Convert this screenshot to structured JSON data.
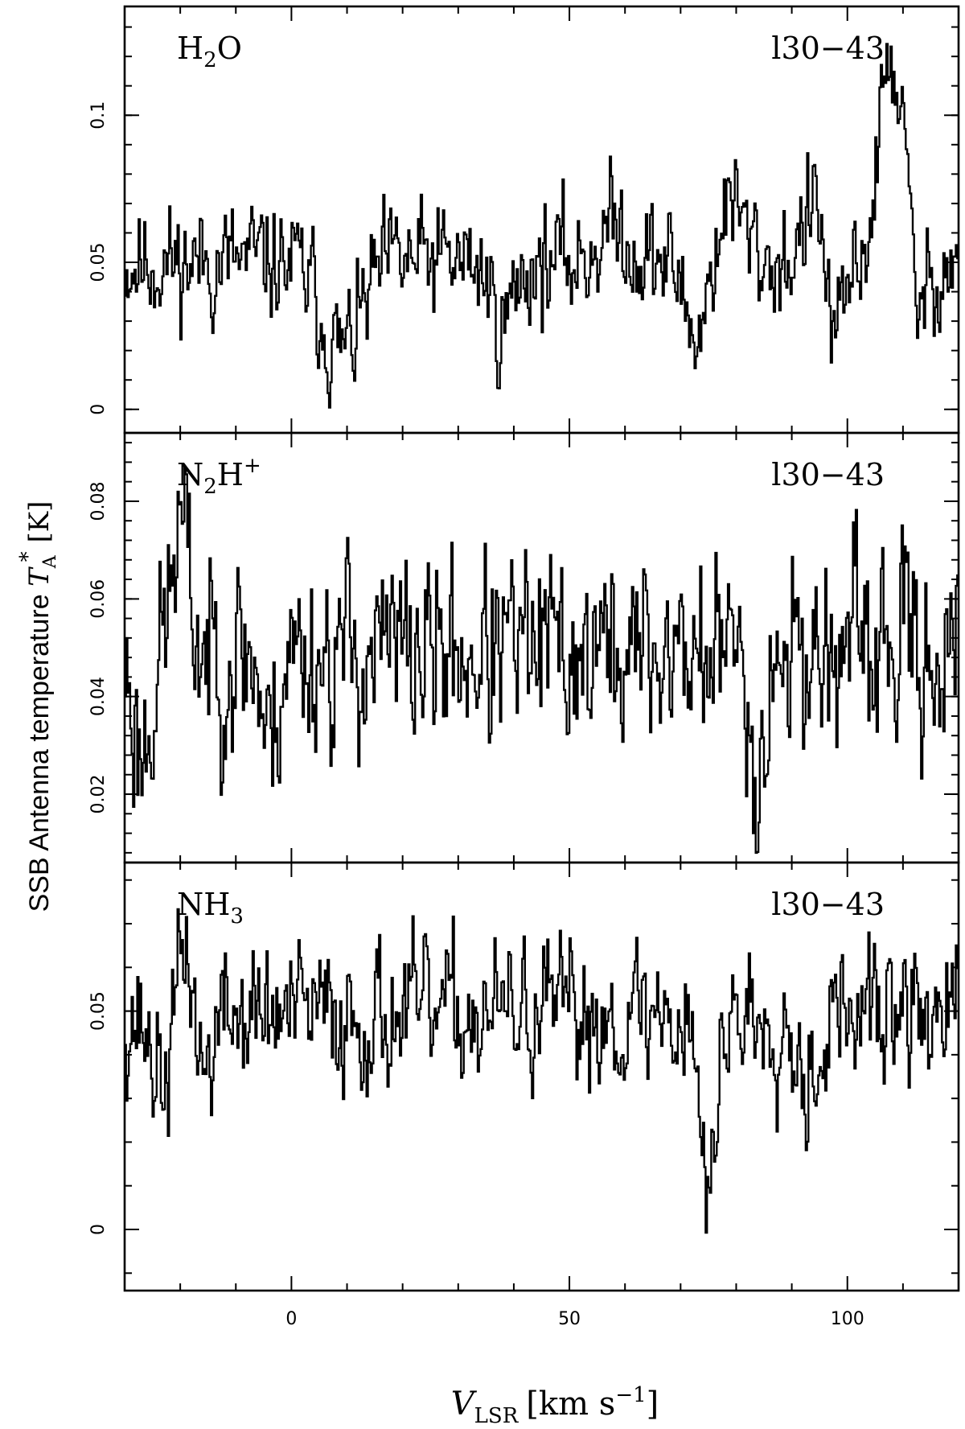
{
  "chart_data": {
    "type": "line",
    "style": "histogram-step",
    "xlabel": {
      "main": "V",
      "sub": "LSR",
      "unit": "[km s",
      "sup": "−1",
      "close": "]"
    },
    "ylabel": {
      "main": "SSB Antenna temperature ",
      "var": "T",
      "sub": "A",
      "sup": "*",
      "unit": " [K]"
    },
    "xlim": [
      -30,
      120
    ],
    "xticks_major": [
      0,
      50,
      100
    ],
    "xtick_labels": [
      "0",
      "50",
      "100"
    ],
    "panels": [
      {
        "molecule": {
          "base": "H",
          "sub": "2",
          "rest": "O",
          "sup": ""
        },
        "source": "l30−43",
        "ylim": [
          -0.008,
          0.137
        ],
        "yticks": [
          0,
          0.05,
          0.1
        ],
        "ytick_labels": [
          "0",
          "0.05",
          "0.1"
        ],
        "baseline": 0.05,
        "noise": 0.0105,
        "features": [
          {
            "center": 9,
            "width": 3.5,
            "amp": -0.03
          },
          {
            "center": 38,
            "width": 2.0,
            "amp": -0.02
          },
          {
            "center": 58,
            "width": 3.0,
            "amp": 0.012
          },
          {
            "center": 73,
            "width": 2.0,
            "amp": -0.025
          },
          {
            "center": 79,
            "width": 2.5,
            "amp": 0.02
          },
          {
            "center": 94,
            "width": 2.0,
            "amp": 0.018
          },
          {
            "center": 98,
            "width": 1.5,
            "amp": -0.03
          },
          {
            "center": 108,
            "width": 2.2,
            "amp": 0.07
          },
          {
            "center": 113,
            "width": 1.5,
            "amp": -0.02
          }
        ],
        "seed": 11
      },
      {
        "molecule": {
          "base": "N",
          "sub": "2",
          "rest": "H",
          "sup": "+"
        },
        "source": "l30−43",
        "ylim": [
          0.006,
          0.094
        ],
        "yticks": [
          0.02,
          0.04,
          0.06,
          0.08
        ],
        "ytick_labels": [
          "0.02",
          "0.04",
          "0.06",
          "0.08"
        ],
        "baseline": 0.049,
        "noise": 0.0105,
        "features": [
          {
            "center": -27,
            "width": 1.5,
            "amp": -0.02
          },
          {
            "center": -20,
            "width": 1.5,
            "amp": 0.025
          },
          {
            "center": -4,
            "width": 1.2,
            "amp": -0.02
          },
          {
            "center": 84,
            "width": 1.2,
            "amp": -0.025
          }
        ],
        "seed": 23
      },
      {
        "molecule": {
          "base": "NH",
          "sub": "3",
          "rest": "",
          "sup": ""
        },
        "source": "l30−43",
        "ylim": [
          -0.014,
          0.084
        ],
        "yticks": [
          0,
          0.05
        ],
        "ytick_labels": [
          "0",
          "0.05"
        ],
        "baseline": 0.049,
        "noise": 0.0085,
        "features": [
          {
            "center": -23,
            "width": 2.0,
            "amp": -0.015
          },
          {
            "center": -19,
            "width": 1.5,
            "amp": 0.02
          },
          {
            "center": -16,
            "width": 1.5,
            "amp": -0.015
          },
          {
            "center": 75,
            "width": 1.2,
            "amp": -0.045
          },
          {
            "center": 93,
            "width": 2.0,
            "amp": -0.012
          }
        ],
        "seed": 37
      }
    ]
  }
}
